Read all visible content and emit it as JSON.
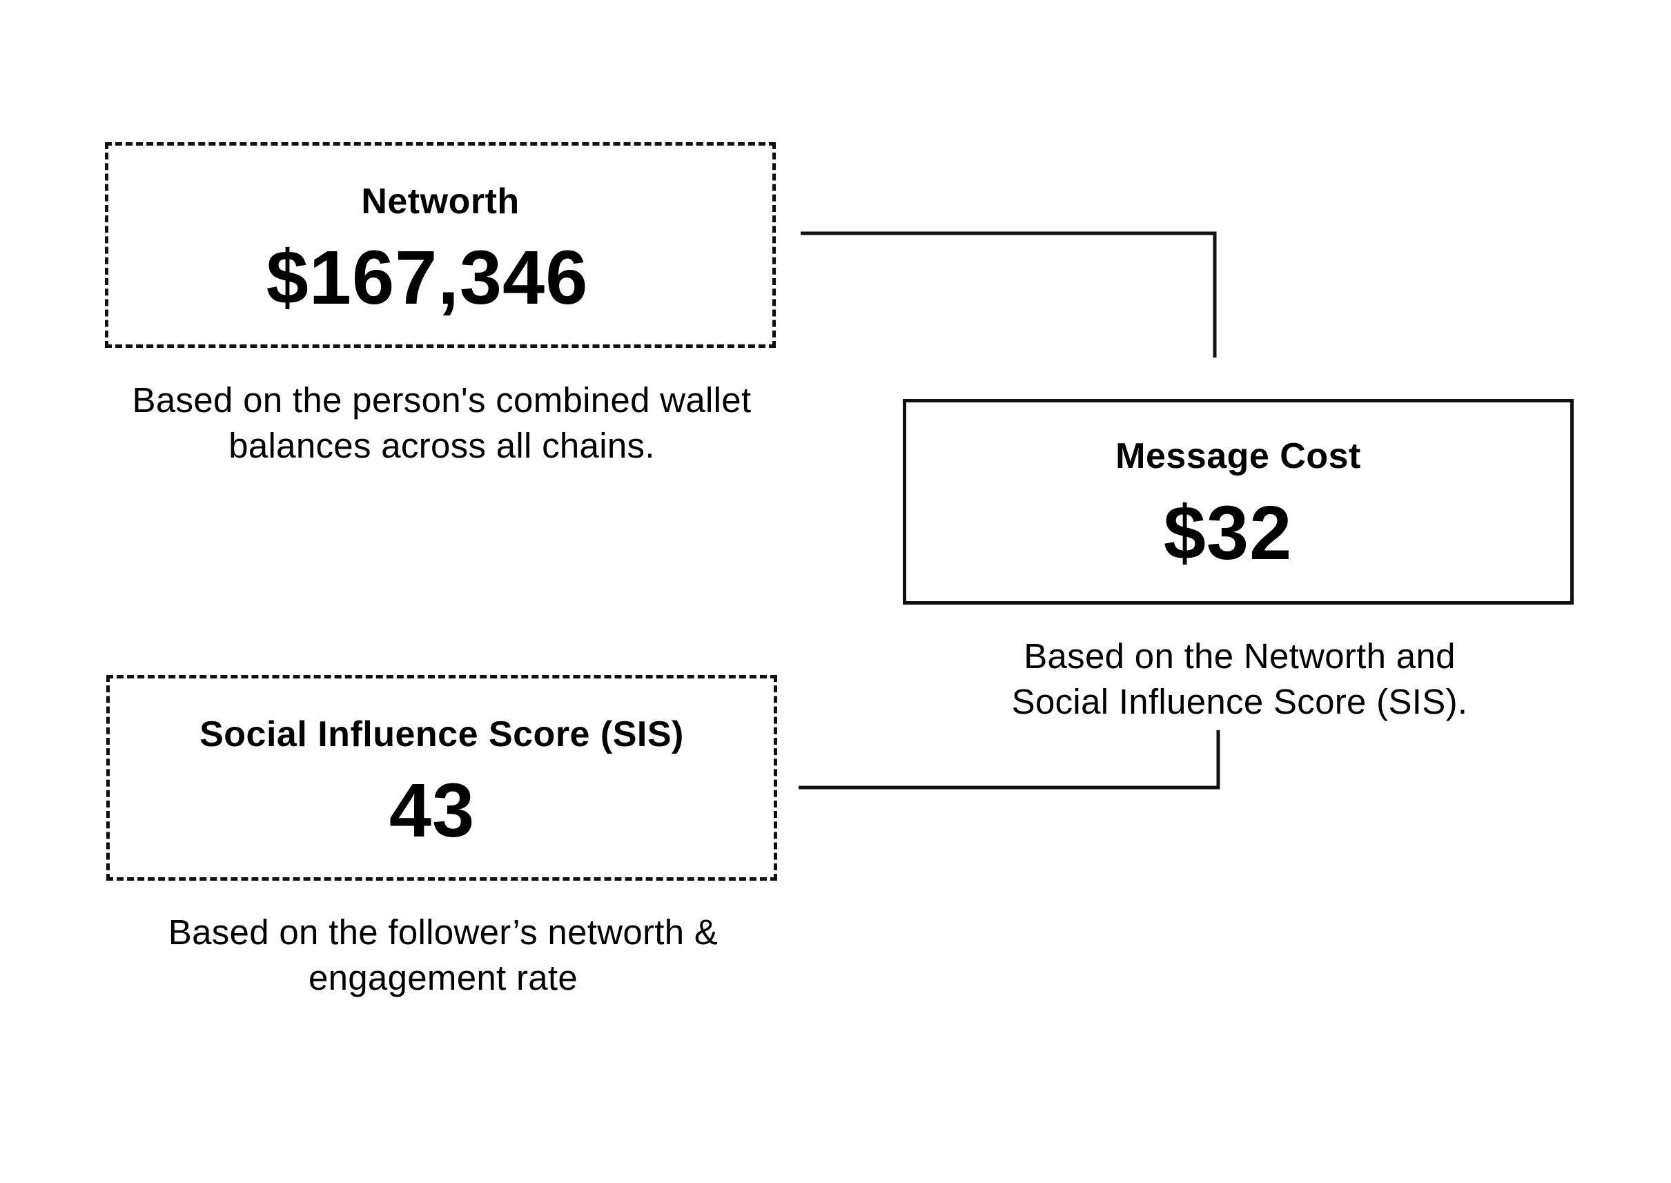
{
  "networth": {
    "label": "Networth",
    "value": "$167,346",
    "caption_line1": "Based on the person's combined wallet",
    "caption_line2": "balances across all chains."
  },
  "message_cost": {
    "label": "Message Cost",
    "value": "$32",
    "caption_line1": "Based on the Networth and",
    "caption_line2": "Social Influence Score (SIS)."
  },
  "sis": {
    "label": "Social Influence Score (SIS)",
    "value": "43",
    "caption_line1": "Based on the follower’s networth &",
    "caption_line2": "engagement rate"
  },
  "colors": {
    "stroke": "#111111",
    "background": "#ffffff"
  }
}
